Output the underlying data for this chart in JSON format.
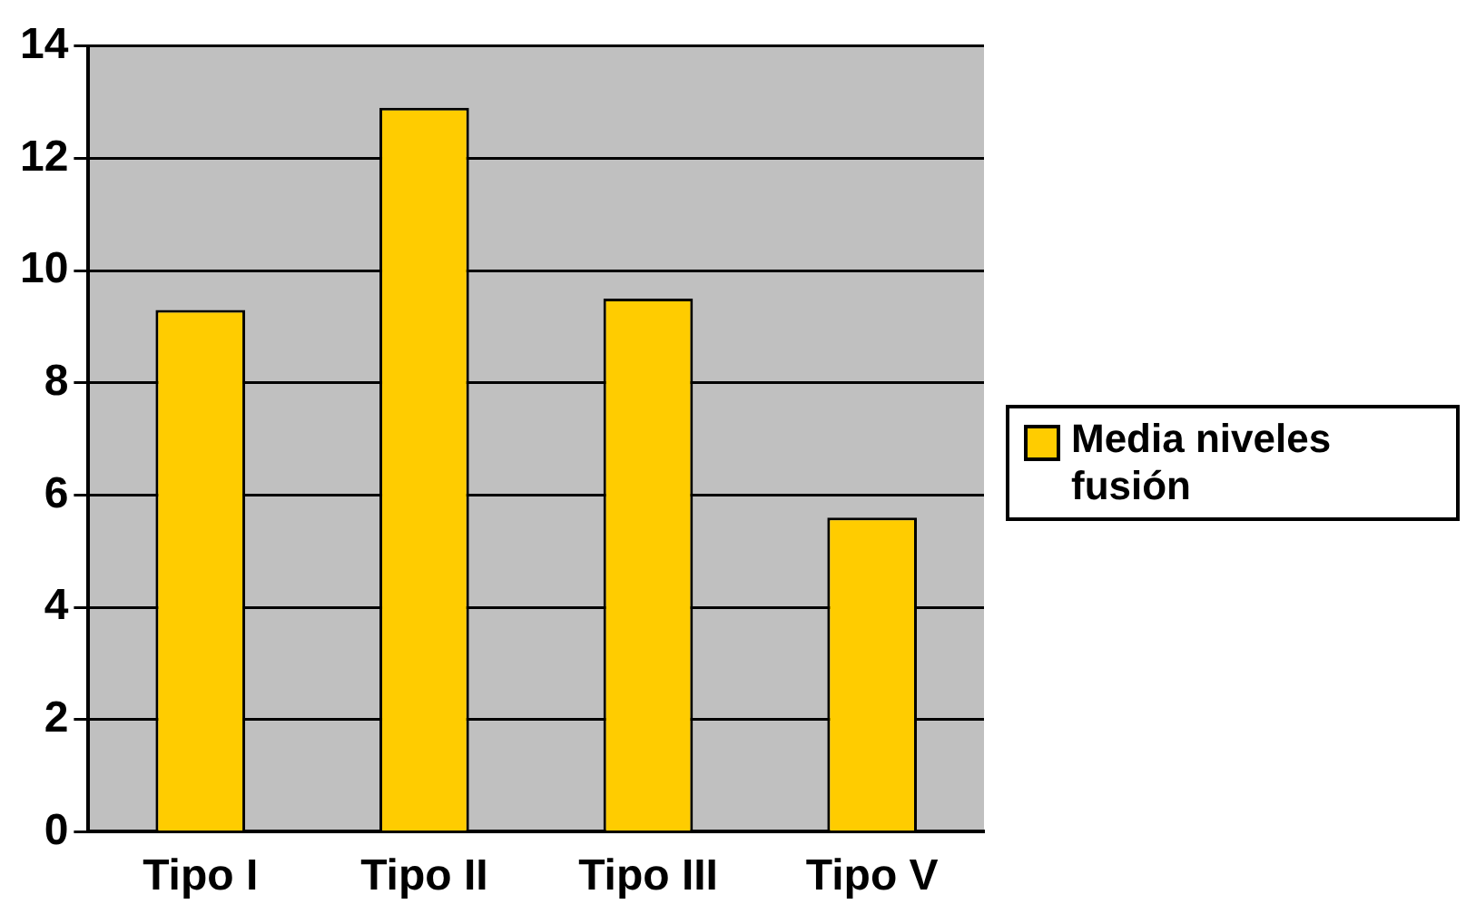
{
  "chart_data": {
    "type": "bar",
    "categories": [
      "Tipo I",
      "Tipo II",
      "Tipo III",
      "Tipo V"
    ],
    "series": [
      {
        "name": "Media niveles fusión",
        "color": "#ffcc00",
        "values": [
          9.3,
          12.9,
          9.5,
          5.6
        ]
      }
    ],
    "ylim": [
      0,
      14
    ],
    "yticks": [
      0,
      2,
      4,
      6,
      8,
      10,
      12,
      14
    ],
    "grid": "y",
    "legend": "right"
  }
}
